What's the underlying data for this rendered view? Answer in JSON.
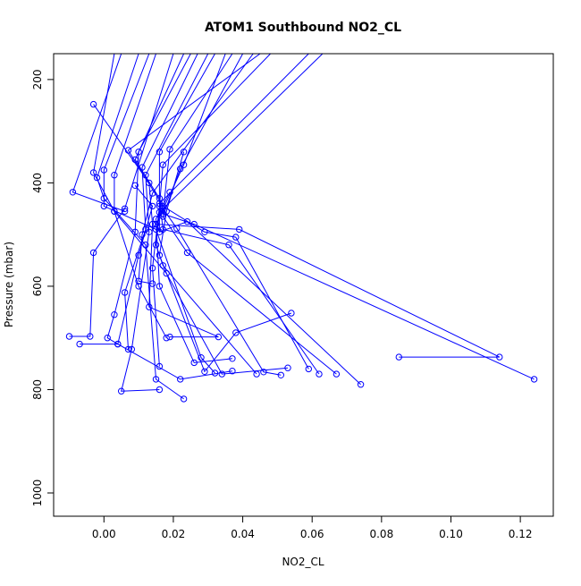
{
  "chart_data": {
    "type": "line",
    "title": "ATOM1 Southbound NO2_CL",
    "xlabel": "NO2_CL",
    "ylabel": "Pressure (mbar)",
    "xlim": [
      -0.0145,
      0.1295
    ],
    "ylim": [
      1045,
      150
    ],
    "y_axis_reversed": true,
    "x_ticks": [
      "0.00",
      "0.02",
      "0.04",
      "0.06",
      "0.08",
      "0.10",
      "0.12"
    ],
    "x_tick_values": [
      0,
      0.02,
      0.04,
      0.06,
      0.08,
      0.1,
      0.12
    ],
    "y_ticks": [
      "200",
      "400",
      "600",
      "800",
      "1000"
    ],
    "y_tick_values": [
      200,
      400,
      600,
      800,
      1000
    ],
    "line_color": "#0000ff",
    "marker": "open-circle",
    "grid": false,
    "series": [
      {
        "values": [
          [
            0.005,
            150
          ],
          [
            -0.009,
            418
          ],
          [
            0.006,
            455
          ]
        ]
      },
      {
        "values": [
          [
            0.003,
            150
          ],
          [
            -0.003,
            380
          ],
          [
            0.003,
            455
          ],
          [
            0.01,
            600
          ],
          [
            0.018,
            700
          ]
        ]
      },
      {
        "values": [
          [
            0.01,
            150
          ],
          [
            -0.002,
            390
          ],
          [
            0.0,
            430
          ],
          [
            0.012,
            520
          ],
          [
            0.015,
            780
          ],
          [
            0.023,
            818
          ]
        ]
      },
      {
        "values": [
          [
            0.013,
            150
          ],
          [
            0.0,
            375
          ],
          [
            0.0,
            445
          ],
          [
            0.015,
            490
          ],
          [
            0.028,
            738
          ],
          [
            0.032,
            768
          ]
        ]
      },
      {
        "values": [
          [
            0.015,
            150
          ],
          [
            0.003,
            385
          ],
          [
            0.003,
            455
          ],
          [
            0.018,
            575
          ],
          [
            0.034,
            770
          ],
          [
            0.053,
            758
          ]
        ]
      },
      {
        "values": [
          [
            0.02,
            150
          ],
          [
            0.006,
            450
          ],
          [
            -0.003,
            535
          ],
          [
            -0.004,
            697
          ],
          [
            -0.01,
            697
          ]
        ]
      },
      {
        "values": [
          [
            0.023,
            150
          ],
          [
            0.009,
            355
          ],
          [
            0.016,
            430
          ],
          [
            0.017,
            490
          ],
          [
            0.036,
            520
          ],
          [
            0.062,
            770
          ]
        ]
      },
      {
        "values": [
          [
            0.025,
            150
          ],
          [
            0.01,
            340
          ],
          [
            0.009,
            495
          ],
          [
            0.003,
            655
          ],
          [
            0.001,
            700
          ],
          [
            0.004,
            712
          ],
          [
            -0.007,
            712
          ]
        ]
      },
      {
        "values": [
          [
            0.027,
            150
          ],
          [
            0.011,
            370
          ],
          [
            0.012,
            490
          ],
          [
            0.006,
            612
          ],
          [
            0.007,
            722
          ]
        ]
      },
      {
        "values": [
          [
            0.03,
            150
          ],
          [
            0.012,
            385
          ],
          [
            0.013,
            495
          ],
          [
            0.008,
            722
          ],
          [
            0.005,
            803
          ],
          [
            0.016,
            800
          ]
        ]
      },
      {
        "values": [
          [
            0.032,
            150
          ],
          [
            0.016,
            340
          ],
          [
            0.016,
            495
          ],
          [
            0.024,
            475
          ],
          [
            0.074,
            790
          ]
        ]
      },
      {
        "values": [
          [
            0.035,
            150
          ],
          [
            0.023,
            365
          ],
          [
            0.015,
            480
          ],
          [
            0.039,
            490
          ],
          [
            0.114,
            737
          ],
          [
            0.085,
            737
          ]
        ]
      },
      {
        "values": [
          [
            0.037,
            150
          ],
          [
            0.019,
            335
          ],
          [
            0.017,
            460
          ],
          [
            0.026,
            480
          ],
          [
            0.124,
            780
          ]
        ]
      },
      {
        "values": [
          [
            0.04,
            150
          ],
          [
            0.022,
            373
          ],
          [
            0.017,
            465
          ],
          [
            0.024,
            535
          ],
          [
            0.067,
            770
          ]
        ]
      },
      {
        "values": [
          [
            0.045,
            150
          ],
          [
            0.007,
            337
          ],
          [
            0.017,
            445
          ],
          [
            0.029,
            495
          ],
          [
            0.038,
            505
          ],
          [
            0.059,
            760
          ]
        ]
      },
      {
        "values": [
          [
            -0.003,
            248
          ],
          [
            0.013,
            400
          ],
          [
            0.014,
            480
          ],
          [
            0.013,
            640
          ],
          [
            0.033,
            698
          ],
          [
            0.019,
            698
          ]
        ]
      },
      {
        "values": [
          [
            0.009,
            405
          ],
          [
            0.014,
            445
          ],
          [
            0.01,
            540
          ],
          [
            0.004,
            712
          ],
          [
            0.022,
            780
          ],
          [
            0.037,
            764
          ]
        ]
      },
      {
        "values": [
          [
            0.019,
            418
          ],
          [
            0.015,
            470
          ],
          [
            0.016,
            600
          ],
          [
            0.026,
            748
          ],
          [
            0.037,
            740
          ]
        ]
      },
      {
        "values": [
          [
            0.023,
            340
          ],
          [
            0.018,
            455
          ],
          [
            0.016,
            540
          ],
          [
            0.029,
            765
          ],
          [
            0.038,
            690
          ],
          [
            0.054,
            652
          ]
        ]
      },
      {
        "values": [
          [
            0.059,
            150
          ],
          [
            0.016,
            440
          ],
          [
            0.021,
            488
          ],
          [
            0.046,
            766
          ],
          [
            0.051,
            772
          ]
        ]
      },
      {
        "values": [
          [
            0.063,
            150
          ],
          [
            0.016,
            457
          ],
          [
            0.015,
            520
          ],
          [
            0.017,
            560
          ],
          [
            0.044,
            770
          ]
        ]
      },
      {
        "values": [
          [
            0.048,
            150
          ],
          [
            0.017,
            365
          ],
          [
            0.016,
            445
          ],
          [
            0.014,
            565
          ],
          [
            0.016,
            755
          ]
        ]
      },
      {
        "values": [
          [
            0.043,
            150
          ],
          [
            0.014,
            420
          ],
          [
            0.011,
            500
          ],
          [
            0.01,
            590
          ],
          [
            0.014,
            595
          ]
        ]
      }
    ]
  }
}
